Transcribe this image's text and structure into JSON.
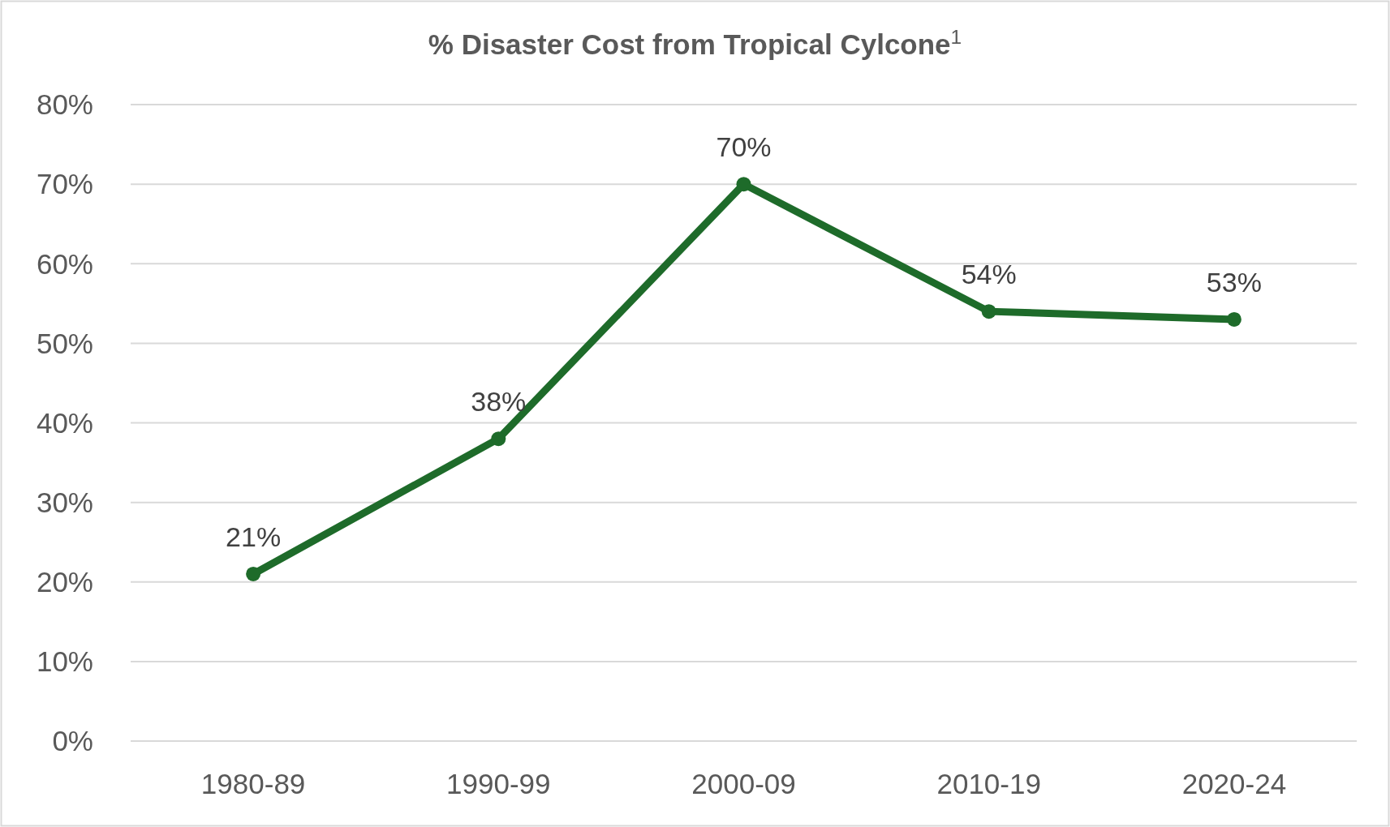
{
  "chart_data": {
    "type": "line",
    "title": "% Disaster Cost from Tropical Cylcone$^{1}$",
    "categories": [
      "1980-89",
      "1990-99",
      "2000-09",
      "2010-19",
      "2020-24"
    ],
    "series": [
      {
        "color": "#1e6b2a",
        "values": [
          21,
          38,
          70,
          54,
          53
        ],
        "value_labels": [
          "21%",
          "38%",
          "70%",
          "54%",
          "53%"
        ]
      }
    ],
    "ylim": [
      0,
      80
    ],
    "yticks": [
      {
        "value": 0,
        "label": "0%"
      },
      {
        "value": 10,
        "label": "10%"
      },
      {
        "value": 20,
        "label": "20%"
      },
      {
        "value": 30,
        "label": "30%"
      },
      {
        "value": 40,
        "label": "40%"
      },
      {
        "value": 50,
        "label": "50%"
      },
      {
        "value": 60,
        "label": "60%"
      },
      {
        "value": 70,
        "label": "70%"
      },
      {
        "value": 80,
        "label": "80%"
      }
    ],
    "grid": "y",
    "marker": "circle",
    "line_style": "solid"
  }
}
